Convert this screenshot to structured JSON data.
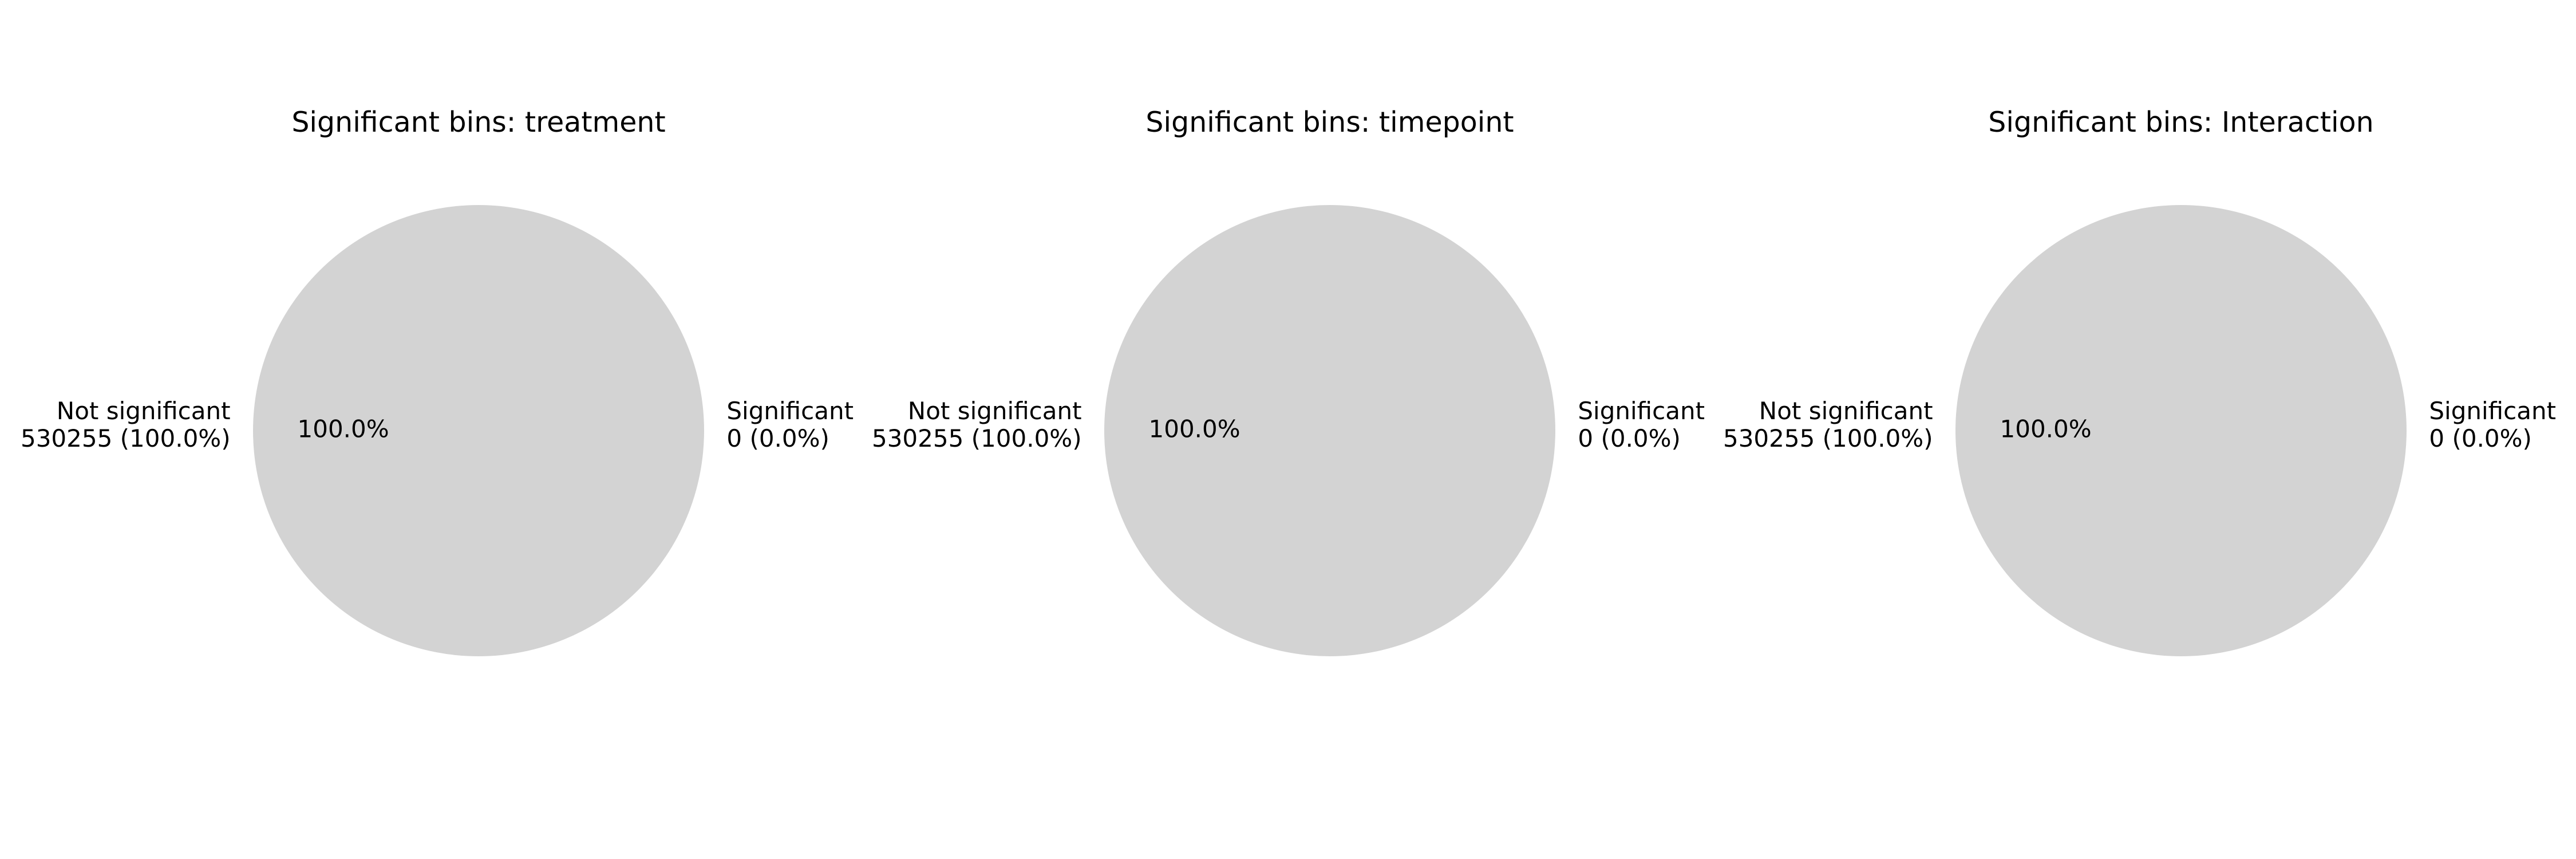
{
  "chart_data": [
    {
      "type": "pie",
      "title": "Significant bins: treatment",
      "slices": [
        {
          "label": "Significant",
          "count": 0,
          "count_text": "0 (0.0%)",
          "percent": 0.0,
          "percent_text": "0.0%",
          "color": "#d3d3d3"
        },
        {
          "label": "Not significant",
          "count": 530255,
          "count_text": "530255 (100.0%)",
          "percent": 100.0,
          "percent_text": "100.0%",
          "color": "#d3d3d3"
        }
      ]
    },
    {
      "type": "pie",
      "title": "Significant bins: timepoint",
      "slices": [
        {
          "label": "Significant",
          "count": 0,
          "count_text": "0 (0.0%)",
          "percent": 0.0,
          "percent_text": "0.0%",
          "color": "#d3d3d3"
        },
        {
          "label": "Not significant",
          "count": 530255,
          "count_text": "530255 (100.0%)",
          "percent": 100.0,
          "percent_text": "100.0%",
          "color": "#d3d3d3"
        }
      ]
    },
    {
      "type": "pie",
      "title": "Significant bins: Interaction",
      "slices": [
        {
          "label": "Significant",
          "count": 0,
          "count_text": "0 (0.0%)",
          "percent": 0.0,
          "percent_text": "0.0%",
          "color": "#d3d3d3"
        },
        {
          "label": "Not significant",
          "count": 530255,
          "count_text": "530255 (100.0%)",
          "percent": 100.0,
          "percent_text": "100.0%",
          "color": "#d3d3d3"
        }
      ]
    }
  ]
}
